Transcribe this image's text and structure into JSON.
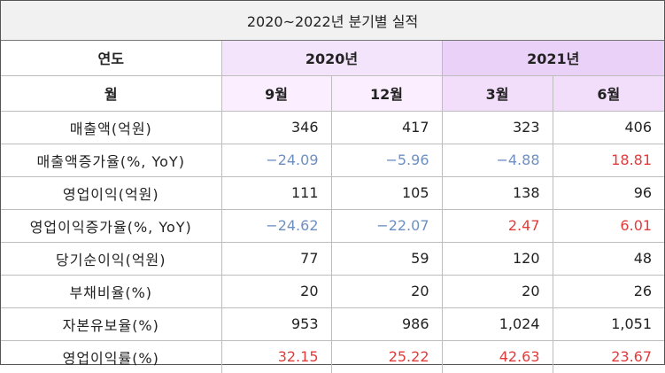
{
  "title": "2020~2022년 분기별 실적",
  "header": {
    "year_label": "연도",
    "month_label": "월",
    "years": [
      "2020년",
      "2021년"
    ],
    "months": [
      "9월",
      "12월",
      "3월",
      "6월"
    ]
  },
  "rows": [
    {
      "label": "매출액(억원)",
      "values": [
        "346",
        "417",
        "323",
        "406"
      ]
    },
    {
      "label": "매출액증가율(%, YoY)",
      "values": [
        "−24.09",
        "−5.96",
        "−4.88",
        "18.81"
      ]
    },
    {
      "label": "영업이익(억원)",
      "values": [
        "111",
        "105",
        "138",
        "96"
      ]
    },
    {
      "label": "영업이익증가율(%, YoY)",
      "values": [
        "−24.62",
        "−22.07",
        "2.47",
        "6.01"
      ]
    },
    {
      "label": "당기순이익(억원)",
      "values": [
        "77",
        "59",
        "120",
        "48"
      ]
    },
    {
      "label": "부채비율(%)",
      "values": [
        "20",
        "20",
        "20",
        "26"
      ]
    },
    {
      "label": "자본유보율(%)",
      "values": [
        "953",
        "986",
        "1,024",
        "1,051"
      ]
    },
    {
      "label": "영업이익률(%)",
      "values": [
        "32.15",
        "25.22",
        "42.63",
        "23.67"
      ]
    }
  ],
  "colors": {
    "negative": "#6e8fc2",
    "positive_highlight": "#e23b3b",
    "year_2020_bg": "#f3e4fb",
    "year_2021_bg": "#e9d1f7"
  }
}
